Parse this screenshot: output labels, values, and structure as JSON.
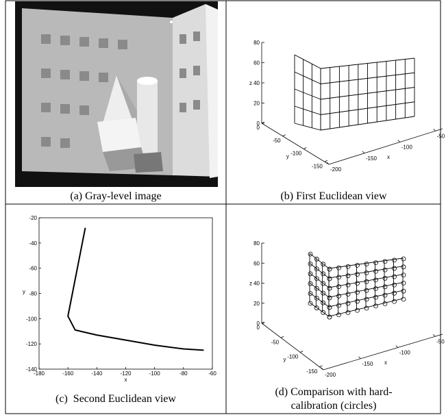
{
  "panels": [
    {
      "caption": "(a) Gray-level image"
    },
    {
      "caption": "(b) First Euclidean view",
      "plot": {
        "type": "surface3d",
        "xlabel": "x",
        "ylabel": "y",
        "zlabel": "z",
        "xlim": [
          -200,
          -40
        ],
        "xticks": [
          -200,
          -150,
          -100,
          -50
        ],
        "ylim": [
          0,
          -160
        ],
        "yticks": [
          0,
          -50,
          -100,
          -150
        ],
        "zlim": [
          0,
          80
        ],
        "zticks": [
          0,
          20,
          40,
          60,
          80
        ]
      }
    },
    {
      "caption": "(c)  Second Euclidean view",
      "plot": {
        "type": "line",
        "xlabel": "x",
        "ylabel": "y",
        "xlim": [
          -180,
          -60
        ],
        "xticks": [
          -180,
          -160,
          -140,
          -120,
          -100,
          -80,
          -60
        ],
        "ylim": [
          -140,
          -20
        ],
        "yticks": [
          -140,
          -120,
          -100,
          -80,
          -60,
          -40,
          -20
        ],
        "x": [
          -148,
          -160,
          -155,
          -140,
          -120,
          -100,
          -80,
          -66
        ],
        "series": [
          {
            "color": "#000000",
            "values": [
              -28,
              -98,
              -109,
              -113,
              -117,
              -121,
              -124,
              -125
            ]
          }
        ]
      }
    },
    {
      "caption_lines": [
        "(d) Comparison with hard-",
        "calibration (circles)"
      ],
      "plot": {
        "type": "surface3d",
        "xlabel": "x",
        "ylabel": "y",
        "zlabel": "z",
        "xlim": [
          -200,
          -40
        ],
        "xticks": [
          -200,
          -150,
          -100,
          -50
        ],
        "ylim": [
          0,
          -160
        ],
        "yticks": [
          0,
          -50,
          -100,
          -150
        ],
        "zlim": [
          0,
          80
        ],
        "zticks": [
          0,
          20,
          40,
          60,
          80
        ]
      }
    }
  ]
}
